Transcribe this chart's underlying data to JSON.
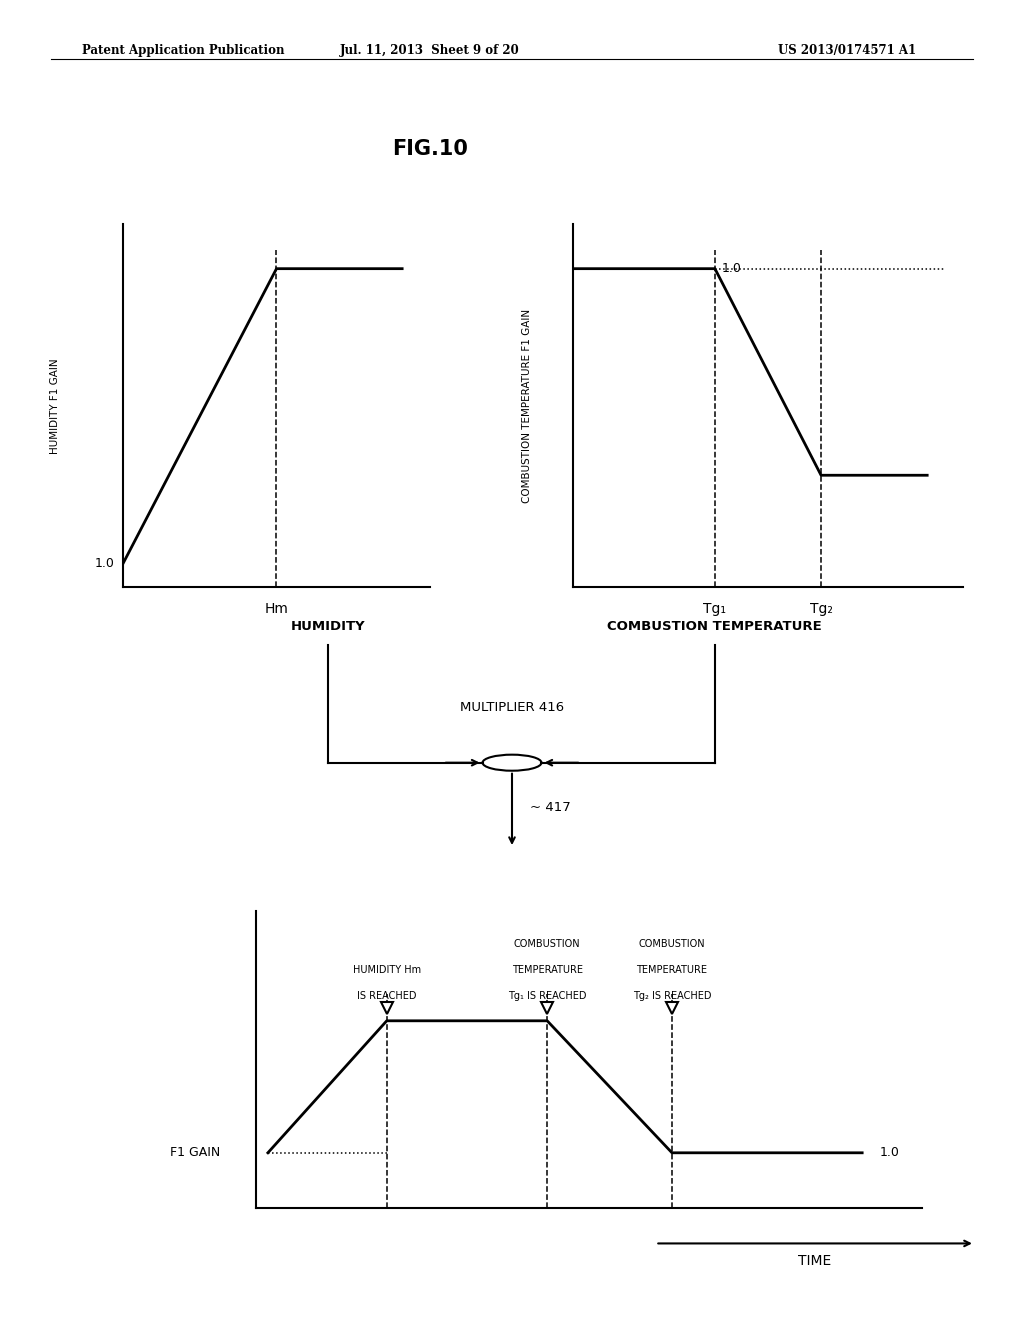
{
  "bg_color": "#ffffff",
  "text_color": "#000000",
  "header_left": "Patent Application Publication",
  "header_mid": "Jul. 11, 2013  Sheet 9 of 20",
  "header_right": "US 2013/0174571 A1",
  "fig_title": "FIG.10",
  "graph1_ylabel": "HUMIDITY F1 GAIN",
  "graph1_xlabel": "Hm",
  "graph1_label10": "1.0",
  "graph2_ylabel": "COMBUSTION TEMPERATURE F1 GAIN",
  "graph2_label10": "1.0",
  "graph2_tg1": "Tg₁",
  "graph2_tg2": "Tg₂",
  "humidity_label": "HUMIDITY",
  "combustion_label": "COMBUSTION TEMPERATURE",
  "multiplier_label": "MULTIPLIER 416",
  "ref_417": "417",
  "graph3_ylabel": "F1 GAIN",
  "graph3_xlabel": "TIME",
  "graph3_label10": "1.0",
  "ann1_line1": "HUMIDITY Hm",
  "ann1_line2": "IS REACHED",
  "ann2_line1": "COMBUSTION",
  "ann2_line2": "TEMPERATURE",
  "ann2_line3": "Tg₁ IS REACHED",
  "ann3_line1": "COMBUSTION",
  "ann3_line2": "TEMPERATURE",
  "ann3_line3": "Tg₂ IS REACHED"
}
